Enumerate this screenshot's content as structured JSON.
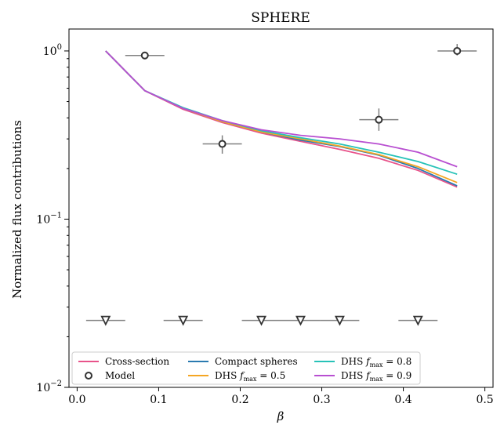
{
  "chart_data": {
    "type": "line",
    "title": "SPHERE",
    "xlabel": "β",
    "ylabel": "Normalized flux contributions",
    "xlim": [
      -0.01,
      0.51
    ],
    "ylim": [
      0.01,
      1.35
    ],
    "yscale": "log",
    "x_ticks": [
      0.0,
      0.1,
      0.2,
      0.3,
      0.4,
      0.5
    ],
    "x_tick_labels": [
      "0.0",
      "0.1",
      "0.2",
      "0.3",
      "0.4",
      "0.5"
    ],
    "y_ticks": [
      0.01,
      0.1,
      1.0
    ],
    "y_tick_labels": [
      {
        "base": "10",
        "exp": "−2"
      },
      {
        "base": "10",
        "exp": "−1"
      },
      {
        "base": "10",
        "exp": "0"
      }
    ],
    "grid": false,
    "legend_position": "bottom",
    "x": [
      0.035,
      0.083,
      0.13,
      0.178,
      0.226,
      0.274,
      0.322,
      0.37,
      0.418,
      0.466
    ],
    "series": [
      {
        "name": "Cross-section",
        "color": "#e8538a",
        "values": [
          1.0,
          0.58,
          0.45,
          0.375,
          0.325,
          0.29,
          0.26,
          0.23,
          0.195,
          0.155
        ]
      },
      {
        "name": "Compact spheres",
        "color": "#2a7ab0",
        "values": [
          1.0,
          0.58,
          0.455,
          0.38,
          0.33,
          0.295,
          0.27,
          0.24,
          0.2,
          0.158
        ]
      },
      {
        "name": "DHS f_max = 0.5",
        "color": "#f5a623",
        "values": [
          1.0,
          0.58,
          0.455,
          0.38,
          0.33,
          0.3,
          0.272,
          0.242,
          0.205,
          0.165
        ]
      },
      {
        "name": "DHS f_max = 0.8",
        "color": "#27c2b8",
        "values": [
          1.0,
          0.58,
          0.46,
          0.385,
          0.335,
          0.305,
          0.28,
          0.25,
          0.22,
          0.185
        ]
      },
      {
        "name": "DHS f_max = 0.9",
        "color": "#b84fd1",
        "values": [
          1.0,
          0.58,
          0.455,
          0.385,
          0.34,
          0.315,
          0.3,
          0.28,
          0.25,
          0.205
        ]
      }
    ],
    "model": {
      "name": "Model",
      "points": [
        {
          "x": 0.083,
          "y": 0.94,
          "xerr": 0.024,
          "yerr": [
            0.0,
            0.0
          ]
        },
        {
          "x": 0.178,
          "y": 0.28,
          "xerr": 0.024,
          "yerr": [
            0.035,
            0.035
          ]
        },
        {
          "x": 0.37,
          "y": 0.39,
          "xerr": 0.024,
          "yerr": [
            0.055,
            0.065
          ]
        },
        {
          "x": 0.466,
          "y": 1.0,
          "xerr": 0.024,
          "yerr": [
            0.06,
            0.1
          ]
        }
      ],
      "upper_limits": [
        {
          "x": 0.035,
          "y": 0.025,
          "xerr": 0.024
        },
        {
          "x": 0.13,
          "y": 0.025,
          "xerr": 0.024
        },
        {
          "x": 0.226,
          "y": 0.025,
          "xerr": 0.024
        },
        {
          "x": 0.274,
          "y": 0.025,
          "xerr": 0.024
        },
        {
          "x": 0.322,
          "y": 0.025,
          "xerr": 0.024
        },
        {
          "x": 0.418,
          "y": 0.025,
          "xerr": 0.024
        }
      ]
    },
    "legend": [
      {
        "label": "Cross-section",
        "kind": "line",
        "color": "#e8538a"
      },
      {
        "label": "Model",
        "kind": "marker"
      },
      {
        "label": "Compact spheres",
        "kind": "line",
        "color": "#2a7ab0"
      },
      {
        "label": "DHS",
        "sub": "max",
        "value": "= 0.5",
        "kind": "line",
        "color": "#f5a623"
      },
      {
        "label": "DHS",
        "sub": "max",
        "value": "= 0.8",
        "kind": "line",
        "color": "#27c2b8"
      },
      {
        "label": "DHS",
        "sub": "max",
        "value": "= 0.9",
        "kind": "line",
        "color": "#b84fd1"
      }
    ]
  }
}
